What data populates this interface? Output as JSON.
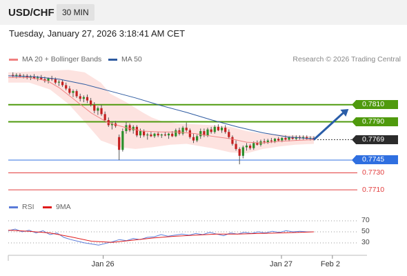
{
  "header": {
    "symbol": "USD/CHF",
    "timeframe": "30 MIN"
  },
  "datetime": "Tuesday, January 27, 2026 3:18:41 AM CET",
  "legend": {
    "ma20": {
      "label": "MA 20 + Bollinger Bands",
      "color": "#f08080"
    },
    "ma50": {
      "label": "MA 50",
      "color": "#2d5aa0"
    }
  },
  "copyright": "Research © 2026 Trading Central",
  "rsi_legend": {
    "rsi": {
      "label": "RSI",
      "color": "#5a7bd8"
    },
    "ma9": {
      "label": "9MA",
      "color": "#e01b1b"
    }
  },
  "chart_data": {
    "type": "candlestick",
    "price_ylim": [
      0.7702,
      0.7852
    ],
    "xlim": [
      0,
      132
    ],
    "x_ticks": [
      {
        "label": "Jan 26",
        "x": 41
      },
      {
        "label": "Jan 27",
        "x": 118
      },
      {
        "label": "Feb 2",
        "x": 140
      }
    ],
    "current_x": 132,
    "candles": [
      [
        0.7845,
        0.7848,
        0.7842,
        0.7844
      ],
      [
        0.7844,
        0.7847,
        0.7841,
        0.7845
      ],
      [
        0.7845,
        0.7847,
        0.7842,
        0.7843
      ],
      [
        0.7843,
        0.7846,
        0.7841,
        0.7844
      ],
      [
        0.7844,
        0.7846,
        0.784,
        0.7842
      ],
      [
        0.7842,
        0.7845,
        0.7839,
        0.7843
      ],
      [
        0.7843,
        0.7846,
        0.784,
        0.7841
      ],
      [
        0.7841,
        0.7844,
        0.7838,
        0.7842
      ],
      [
        0.7842,
        0.7845,
        0.7839,
        0.784
      ],
      [
        0.784,
        0.7843,
        0.7836,
        0.7838
      ],
      [
        0.7838,
        0.7842,
        0.7835,
        0.7841
      ],
      [
        0.7841,
        0.7844,
        0.7838,
        0.784
      ],
      [
        0.784,
        0.7842,
        0.7834,
        0.7836
      ],
      [
        0.7836,
        0.7839,
        0.7832,
        0.7837
      ],
      [
        0.7837,
        0.7839,
        0.7831,
        0.7833
      ],
      [
        0.7833,
        0.7836,
        0.7827,
        0.7829
      ],
      [
        0.7829,
        0.7832,
        0.7822,
        0.7824
      ],
      [
        0.7824,
        0.7828,
        0.7819,
        0.7826
      ],
      [
        0.7826,
        0.7828,
        0.7818,
        0.782
      ],
      [
        0.782,
        0.7823,
        0.7814,
        0.7817
      ],
      [
        0.7817,
        0.7821,
        0.7813,
        0.7819
      ],
      [
        0.7819,
        0.7822,
        0.7812,
        0.7815
      ],
      [
        0.7815,
        0.7818,
        0.7808,
        0.781
      ],
      [
        0.781,
        0.7813,
        0.78,
        0.7803
      ],
      [
        0.7803,
        0.7808,
        0.7798,
        0.7806
      ],
      [
        0.7806,
        0.781,
        0.7797,
        0.7799
      ],
      [
        0.7799,
        0.7802,
        0.779,
        0.7792
      ],
      [
        0.7792,
        0.7795,
        0.7784,
        0.7786
      ],
      [
        0.7786,
        0.779,
        0.7781,
        0.7788
      ],
      [
        0.7788,
        0.7791,
        0.7783,
        0.7785
      ],
      [
        0.7772,
        0.7775,
        0.7745,
        0.7757
      ],
      [
        0.7757,
        0.7782,
        0.7755,
        0.7779
      ],
      [
        0.7779,
        0.779,
        0.7776,
        0.7786
      ],
      [
        0.7786,
        0.7788,
        0.7778,
        0.778
      ],
      [
        0.778,
        0.7786,
        0.7776,
        0.7784
      ],
      [
        0.7784,
        0.7786,
        0.7772,
        0.7774
      ],
      [
        0.7774,
        0.7782,
        0.7771,
        0.7779
      ],
      [
        0.7779,
        0.7781,
        0.7772,
        0.7774
      ],
      [
        0.7774,
        0.7777,
        0.7769,
        0.7775
      ],
      [
        0.7775,
        0.7778,
        0.7772,
        0.7773
      ],
      [
        0.7773,
        0.7777,
        0.7771,
        0.7776
      ],
      [
        0.7776,
        0.7778,
        0.7772,
        0.7774
      ],
      [
        0.7774,
        0.7776,
        0.7771,
        0.7775
      ],
      [
        0.7775,
        0.7778,
        0.7773,
        0.7774
      ],
      [
        0.7774,
        0.7777,
        0.777,
        0.7776
      ],
      [
        0.7776,
        0.7779,
        0.7772,
        0.7773
      ],
      [
        0.7773,
        0.7782,
        0.7772,
        0.778
      ],
      [
        0.778,
        0.7783,
        0.7774,
        0.7776
      ],
      [
        0.7776,
        0.7785,
        0.7774,
        0.7783
      ],
      [
        0.7783,
        0.7789,
        0.7778,
        0.778
      ],
      [
        0.778,
        0.7782,
        0.777,
        0.7772
      ],
      [
        0.7772,
        0.7776,
        0.7765,
        0.7768
      ],
      [
        0.7768,
        0.7775,
        0.7766,
        0.7773
      ],
      [
        0.7773,
        0.7782,
        0.777,
        0.7779
      ],
      [
        0.7779,
        0.7782,
        0.7772,
        0.7774
      ],
      [
        0.7774,
        0.7783,
        0.7772,
        0.7781
      ],
      [
        0.7781,
        0.7784,
        0.7776,
        0.7778
      ],
      [
        0.7778,
        0.7786,
        0.7776,
        0.7784
      ],
      [
        0.7784,
        0.7787,
        0.7779,
        0.778
      ],
      [
        0.778,
        0.7785,
        0.7777,
        0.7783
      ],
      [
        0.7783,
        0.7786,
        0.7776,
        0.7778
      ],
      [
        0.7778,
        0.7781,
        0.777,
        0.7772
      ],
      [
        0.7772,
        0.7774,
        0.7762,
        0.7764
      ],
      [
        0.7764,
        0.7768,
        0.7756,
        0.7758
      ],
      [
        0.7758,
        0.776,
        0.774,
        0.775
      ],
      [
        0.775,
        0.7762,
        0.7747,
        0.776
      ],
      [
        0.776,
        0.7765,
        0.7756,
        0.7762
      ],
      [
        0.7762,
        0.7764,
        0.7757,
        0.7759
      ],
      [
        0.7759,
        0.7767,
        0.7757,
        0.7765
      ],
      [
        0.7765,
        0.7768,
        0.7762,
        0.7763
      ],
      [
        0.7763,
        0.7769,
        0.7761,
        0.7767
      ],
      [
        0.7767,
        0.777,
        0.7764,
        0.7766
      ],
      [
        0.7766,
        0.777,
        0.7764,
        0.7768
      ],
      [
        0.7768,
        0.7771,
        0.7765,
        0.7767
      ],
      [
        0.7767,
        0.7771,
        0.7765,
        0.777
      ],
      [
        0.777,
        0.7772,
        0.7767,
        0.7768
      ],
      [
        0.7768,
        0.7772,
        0.7766,
        0.7771
      ],
      [
        0.7771,
        0.7774,
        0.7768,
        0.7769
      ],
      [
        0.7769,
        0.7773,
        0.7767,
        0.7772
      ],
      [
        0.7772,
        0.7774,
        0.7769,
        0.777
      ],
      [
        0.777,
        0.7774,
        0.7768,
        0.7772
      ],
      [
        0.7772,
        0.7774,
        0.7769,
        0.7771
      ],
      [
        0.7771,
        0.7774,
        0.7769,
        0.7772
      ],
      [
        0.7772,
        0.7774,
        0.7769,
        0.777
      ],
      [
        0.777,
        0.7773,
        0.7768,
        0.7771
      ],
      [
        0.7771,
        0.7773,
        0.7768,
        0.7769
      ]
    ],
    "candle_x_start": 2,
    "candle_x_step": 1.52,
    "ma20": [
      [
        0,
        0.7842
      ],
      [
        9,
        0.7842
      ],
      [
        17,
        0.7838
      ],
      [
        22,
        0.783
      ],
      [
        29,
        0.7815
      ],
      [
        36,
        0.78
      ],
      [
        43,
        0.7789
      ],
      [
        51,
        0.7783
      ],
      [
        58,
        0.7779
      ],
      [
        66,
        0.7778
      ],
      [
        73,
        0.7778
      ],
      [
        81,
        0.7776
      ],
      [
        88,
        0.7773
      ],
      [
        96,
        0.777
      ],
      [
        103,
        0.7766
      ],
      [
        110,
        0.7765
      ],
      [
        117,
        0.7767
      ],
      [
        124,
        0.7768
      ],
      [
        132,
        0.7769
      ]
    ],
    "ma50": [
      [
        0,
        0.7844
      ],
      [
        11,
        0.7843
      ],
      [
        22,
        0.784
      ],
      [
        33,
        0.7834
      ],
      [
        44,
        0.7826
      ],
      [
        55,
        0.7818
      ],
      [
        66,
        0.7809
      ],
      [
        77,
        0.7801
      ],
      [
        88,
        0.7792
      ],
      [
        99,
        0.7784
      ],
      [
        110,
        0.7777
      ],
      [
        121,
        0.7772
      ],
      [
        132,
        0.777
      ]
    ],
    "bb_upper": [
      [
        0,
        0.7848
      ],
      [
        9,
        0.7849
      ],
      [
        18,
        0.785
      ],
      [
        26,
        0.7851
      ],
      [
        33,
        0.7848
      ],
      [
        40,
        0.7836
      ],
      [
        44,
        0.7823
      ],
      [
        51,
        0.7813
      ],
      [
        58,
        0.7801
      ],
      [
        62,
        0.7795
      ],
      [
        66,
        0.7791
      ],
      [
        73,
        0.7788
      ],
      [
        81,
        0.7787
      ],
      [
        88,
        0.7786
      ],
      [
        96,
        0.7784
      ],
      [
        103,
        0.7779
      ],
      [
        110,
        0.7776
      ],
      [
        117,
        0.7775
      ],
      [
        124,
        0.7774
      ],
      [
        132,
        0.7773
      ]
    ],
    "bb_lower": [
      [
        0,
        0.7836
      ],
      [
        9,
        0.7836
      ],
      [
        18,
        0.7828
      ],
      [
        26,
        0.7811
      ],
      [
        33,
        0.779
      ],
      [
        40,
        0.7768
      ],
      [
        48,
        0.776
      ],
      [
        55,
        0.7758
      ],
      [
        62,
        0.776
      ],
      [
        70,
        0.7763
      ],
      [
        77,
        0.7764
      ],
      [
        88,
        0.7759
      ],
      [
        96,
        0.7754
      ],
      [
        103,
        0.7753
      ],
      [
        110,
        0.7758
      ],
      [
        117,
        0.7761
      ],
      [
        124,
        0.7763
      ],
      [
        132,
        0.7764
      ]
    ],
    "levels": [
      {
        "label": "0.7810",
        "value": 0.781,
        "kind": "resistance",
        "color": "#4f9a0d"
      },
      {
        "label": "0.7790",
        "value": 0.779,
        "kind": "resistance",
        "color": "#4f9a0d"
      },
      {
        "label": "0.7769",
        "value": 0.7769,
        "kind": "current",
        "color": "#2b2b2b"
      },
      {
        "label": "0.7745",
        "value": 0.7745,
        "kind": "pivot",
        "color": "#2f6fe0"
      },
      {
        "label": "0.7730",
        "value": 0.773,
        "kind": "support",
        "color": "#e23c3c"
      },
      {
        "label": "0.7710",
        "value": 0.771,
        "kind": "support",
        "color": "#e23c3c"
      }
    ],
    "arrow": {
      "from": [
        132,
        0.7769
      ],
      "to": [
        147,
        0.7805
      ],
      "color": "#2a5da8"
    },
    "rsi": {
      "ylim": [
        10,
        80
      ],
      "levels": [
        70,
        50,
        30
      ],
      "rsi_values": [
        [
          0,
          52
        ],
        [
          3,
          55
        ],
        [
          6,
          50
        ],
        [
          9,
          53
        ],
        [
          12,
          48
        ],
        [
          15,
          52
        ],
        [
          18,
          45
        ],
        [
          21,
          48
        ],
        [
          24,
          40
        ],
        [
          27,
          36
        ],
        [
          30,
          33
        ],
        [
          33,
          30
        ],
        [
          36,
          28
        ],
        [
          39,
          26
        ],
        [
          42,
          29
        ],
        [
          45,
          32
        ],
        [
          48,
          36
        ],
        [
          51,
          34
        ],
        [
          54,
          38
        ],
        [
          57,
          36
        ],
        [
          60,
          40
        ],
        [
          63,
          41
        ],
        [
          66,
          45
        ],
        [
          69,
          42
        ],
        [
          72,
          44
        ],
        [
          75,
          46
        ],
        [
          78,
          44
        ],
        [
          81,
          47
        ],
        [
          84,
          45
        ],
        [
          87,
          49
        ],
        [
          90,
          46
        ],
        [
          93,
          43
        ],
        [
          96,
          48
        ],
        [
          99,
          46
        ],
        [
          102,
          49
        ],
        [
          105,
          47
        ],
        [
          108,
          50
        ],
        [
          111,
          48
        ],
        [
          114,
          51
        ],
        [
          117,
          49
        ],
        [
          120,
          52
        ],
        [
          123,
          50
        ],
        [
          126,
          51
        ],
        [
          129,
          50
        ],
        [
          132,
          50
        ]
      ],
      "ma9_values": [
        [
          0,
          53
        ],
        [
          9,
          51
        ],
        [
          18,
          48
        ],
        [
          27,
          41
        ],
        [
          36,
          33
        ],
        [
          45,
          31
        ],
        [
          54,
          35
        ],
        [
          63,
          39
        ],
        [
          72,
          42
        ],
        [
          81,
          44
        ],
        [
          90,
          46
        ],
        [
          99,
          46
        ],
        [
          108,
          47
        ],
        [
          117,
          48
        ],
        [
          126,
          49
        ],
        [
          132,
          50
        ]
      ]
    }
  }
}
